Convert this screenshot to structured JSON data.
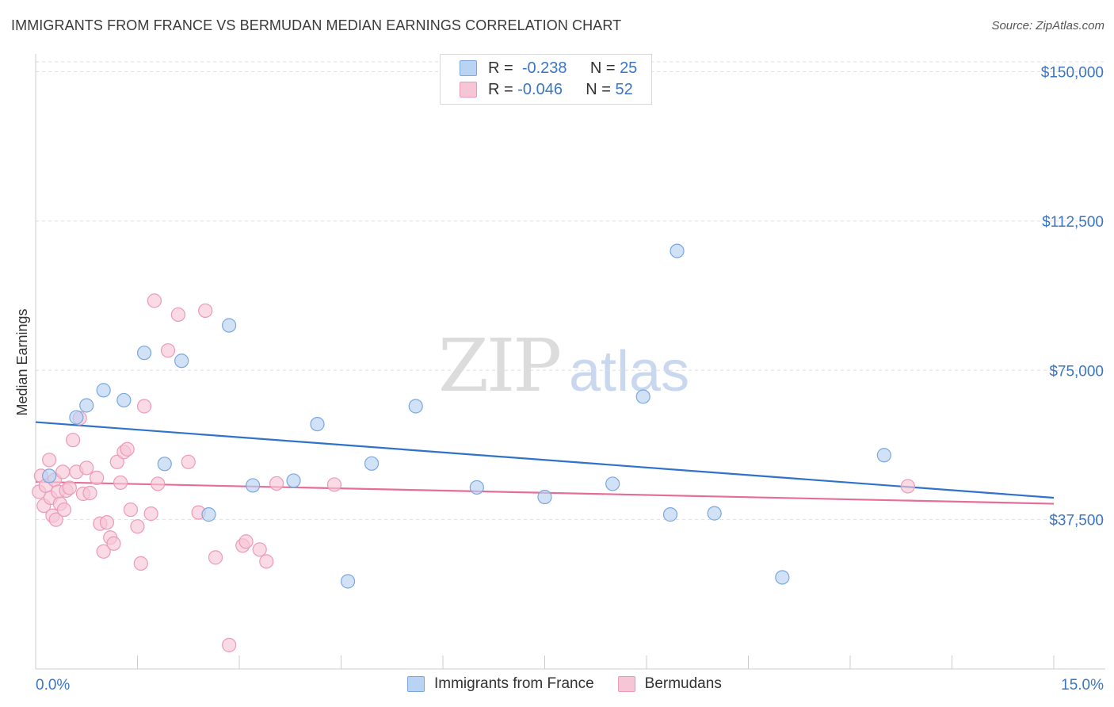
{
  "title": "IMMIGRANTS FROM FRANCE VS BERMUDAN MEDIAN EARNINGS CORRELATION CHART",
  "source": "Source: ZipAtlas.com",
  "watermark": {
    "part1": "ZIP",
    "part2": "atlas"
  },
  "legend": {
    "rows": [
      {
        "r_label": "R =",
        "r_value": "-0.238",
        "n_label": "N =",
        "n_value": "25"
      },
      {
        "r_label": "R =",
        "r_value": "-0.046",
        "n_label": "N =",
        "n_value": "52"
      }
    ]
  },
  "bottom_legend": [
    "Immigrants from France",
    "Bermudans"
  ],
  "colors": {
    "blue_fill": "#b9d3f2",
    "blue_stroke": "#7aa7de",
    "blue_line": "#2f72c9",
    "pink_fill": "#f7c6d6",
    "pink_stroke": "#ec9ab5",
    "pink_line": "#e56e98",
    "axis_label": "#3a76c6",
    "grid": "#dedede"
  },
  "chart_data": {
    "type": "scatter",
    "title": "IMMIGRANTS FROM FRANCE VS BERMUDAN MEDIAN EARNINGS CORRELATION CHART",
    "xlabel": "",
    "ylabel": "Median Earnings",
    "xlim": [
      0,
      15
    ],
    "ylim": [
      0,
      152500
    ],
    "x_tick_labels": [
      "0.0%",
      "15.0%"
    ],
    "y_ticks": [
      37500,
      75000,
      112500,
      150000
    ],
    "y_tick_labels": [
      "$37,500",
      "$75,000",
      "$112,500",
      "$150,000"
    ],
    "grid": true,
    "series": [
      {
        "name": "Immigrants from France",
        "points": [
          [
            0.2,
            48500
          ],
          [
            0.6,
            63200
          ],
          [
            0.75,
            66200
          ],
          [
            1.0,
            70000
          ],
          [
            1.3,
            67500
          ],
          [
            1.6,
            79400
          ],
          [
            1.9,
            51500
          ],
          [
            2.15,
            77400
          ],
          [
            2.55,
            38800
          ],
          [
            2.85,
            86300
          ],
          [
            3.2,
            46100
          ],
          [
            3.8,
            47300
          ],
          [
            4.15,
            61500
          ],
          [
            4.95,
            51600
          ],
          [
            4.6,
            22000
          ],
          [
            5.6,
            66000
          ],
          [
            6.5,
            45600
          ],
          [
            7.5,
            43200
          ],
          [
            8.5,
            46500
          ],
          [
            8.95,
            68400
          ],
          [
            9.35,
            38800
          ],
          [
            9.45,
            105000
          ],
          [
            10.0,
            39100
          ],
          [
            11.0,
            23000
          ],
          [
            12.5,
            53700
          ]
        ],
        "trend": {
          "x": [
            0,
            15
          ],
          "y": [
            62000,
            43000
          ]
        }
      },
      {
        "name": "Bermudans",
        "points": [
          [
            0.05,
            44500
          ],
          [
            0.08,
            48500
          ],
          [
            0.12,
            41000
          ],
          [
            0.15,
            46000
          ],
          [
            0.2,
            52500
          ],
          [
            0.22,
            43000
          ],
          [
            0.25,
            38500
          ],
          [
            0.28,
            47500
          ],
          [
            0.3,
            37500
          ],
          [
            0.33,
            44500
          ],
          [
            0.36,
            41500
          ],
          [
            0.4,
            49500
          ],
          [
            0.42,
            40000
          ],
          [
            0.45,
            44800
          ],
          [
            0.5,
            45500
          ],
          [
            0.55,
            57500
          ],
          [
            0.6,
            49500
          ],
          [
            0.65,
            63000
          ],
          [
            0.7,
            44000
          ],
          [
            0.75,
            50500
          ],
          [
            0.8,
            44200
          ],
          [
            0.9,
            48000
          ],
          [
            0.95,
            36500
          ],
          [
            1.0,
            29500
          ],
          [
            1.05,
            36800
          ],
          [
            1.1,
            33000
          ],
          [
            1.15,
            31500
          ],
          [
            1.2,
            52000
          ],
          [
            1.25,
            46800
          ],
          [
            1.3,
            54500
          ],
          [
            1.35,
            55200
          ],
          [
            1.4,
            40000
          ],
          [
            1.5,
            35800
          ],
          [
            1.55,
            26500
          ],
          [
            1.6,
            66000
          ],
          [
            1.7,
            39000
          ],
          [
            1.75,
            92500
          ],
          [
            1.8,
            46500
          ],
          [
            1.95,
            80000
          ],
          [
            2.1,
            89000
          ],
          [
            2.25,
            52000
          ],
          [
            2.4,
            39300
          ],
          [
            2.5,
            90000
          ],
          [
            2.65,
            28000
          ],
          [
            2.85,
            6000
          ],
          [
            3.05,
            31000
          ],
          [
            3.1,
            32000
          ],
          [
            3.3,
            30000
          ],
          [
            3.4,
            27000
          ],
          [
            3.55,
            46600
          ],
          [
            4.4,
            46300
          ],
          [
            12.85,
            45900
          ]
        ],
        "trend": {
          "x": [
            0,
            15
          ],
          "y": [
            47000,
            41500
          ]
        }
      }
    ]
  }
}
